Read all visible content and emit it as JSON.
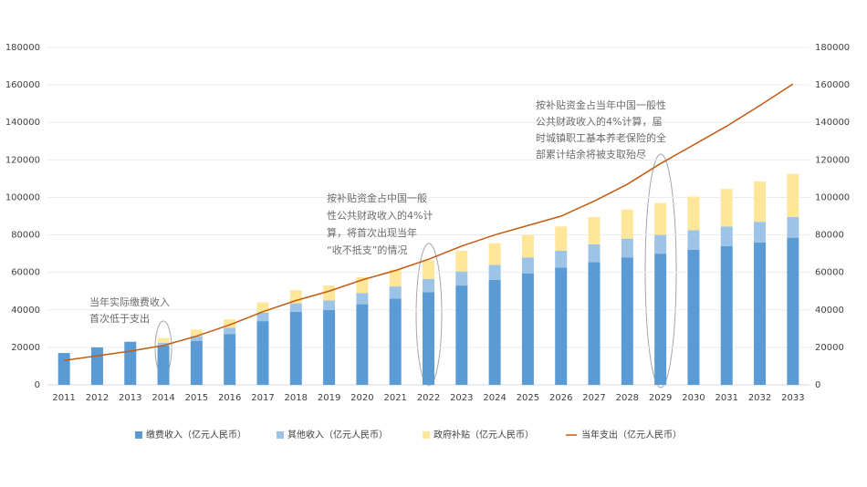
{
  "chart_data": {
    "type": "bar",
    "stacked": true,
    "categories": [
      "2011",
      "2012",
      "2013",
      "2014",
      "2015",
      "2016",
      "2017",
      "2018",
      "2019",
      "2020",
      "2021",
      "2022",
      "2023",
      "2024",
      "2025",
      "2026",
      "2027",
      "2028",
      "2029",
      "2030",
      "2031",
      "2032",
      "2033"
    ],
    "series": [
      {
        "name": "缴费收入（亿元人民币）",
        "type": "bar",
        "color": "#5b9bd5",
        "values": [
          17000,
          20000,
          23000,
          21000,
          23500,
          27000,
          34000,
          39000,
          40000,
          43000,
          46000,
          49500,
          53000,
          56000,
          59500,
          62500,
          65500,
          68000,
          70000,
          72000,
          74000,
          76000,
          78500
        ]
      },
      {
        "name": "其他收入（亿元人民币）",
        "type": "bar",
        "color": "#9dc3e6",
        "values": [
          0,
          0,
          0,
          1500,
          2500,
          3500,
          4500,
          4500,
          5000,
          6000,
          6500,
          7000,
          7500,
          8000,
          8500,
          9000,
          9500,
          10000,
          10000,
          10500,
          10500,
          11000,
          11000
        ]
      },
      {
        "name": "政府补贴（亿元人民币）",
        "type": "bar",
        "color": "#ffe699",
        "values": [
          0,
          0,
          0,
          2500,
          3500,
          4500,
          5500,
          7000,
          8000,
          8500,
          9000,
          10000,
          11000,
          11500,
          12000,
          13000,
          14500,
          15500,
          17000,
          18000,
          20000,
          21500,
          23000
        ]
      },
      {
        "name": "当年支出（亿元人民币）",
        "type": "line",
        "axis": "y2",
        "color": "#c55a11",
        "values": [
          13000,
          15500,
          18000,
          21000,
          26000,
          32000,
          39000,
          45000,
          50000,
          56000,
          61000,
          67000,
          74000,
          80000,
          85000,
          90000,
          98000,
          107000,
          118000,
          128000,
          138000,
          149000,
          160500
        ]
      }
    ],
    "ylim": [
      0,
      180000
    ],
    "yticks": [
      0,
      20000,
      40000,
      60000,
      80000,
      100000,
      120000,
      140000,
      160000,
      180000
    ],
    "y2lim": [
      0,
      180000
    ],
    "y2ticks": [
      0,
      20000,
      40000,
      60000,
      80000,
      100000,
      120000,
      140000,
      160000,
      180000
    ],
    "grid": true,
    "legend": "bottom",
    "annotations": [
      {
        "lines": [
          "当年实际缴费收入",
          "首次低于支出"
        ]
      },
      {
        "lines": [
          "按补贴资金占中国一般",
          "性公共财政收入的4%计",
          "算，将首次出现当年",
          "“收不抵支”的情况"
        ]
      },
      {
        "lines": [
          "按补贴资金占当年中国一般性",
          "公共财政收入的4%计算，届",
          "时城镇职工基本养老保险的全",
          "部累计结余将被支取殆尽"
        ]
      }
    ]
  }
}
